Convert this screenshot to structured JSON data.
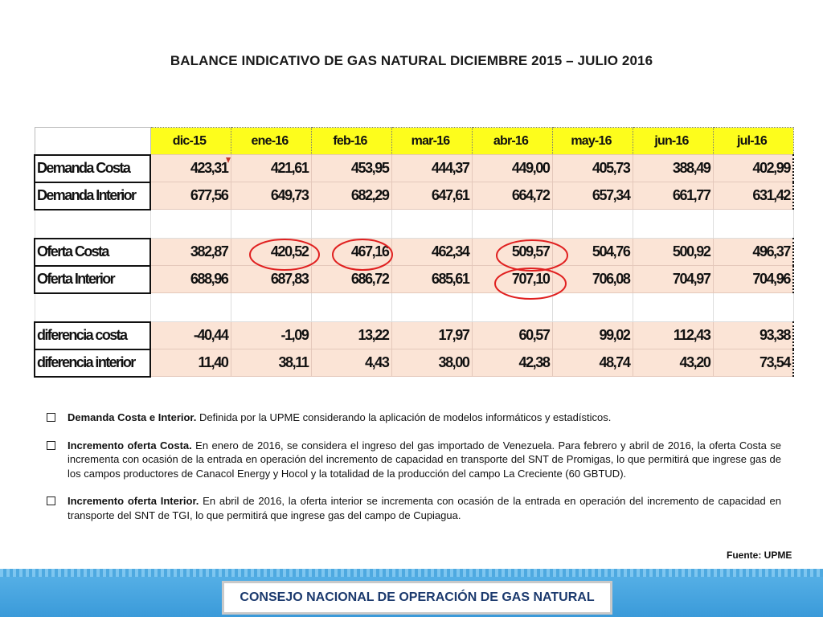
{
  "title": "BALANCE INDICATIVO DE GAS NATURAL DICIEMBRE 2015 – JULIO 2016",
  "table": {
    "columns": [
      "dic-15",
      "ene-16",
      "feb-16",
      "mar-16",
      "abr-16",
      "may-16",
      "jun-16",
      "jul-16"
    ],
    "rows": [
      {
        "label": "Demanda Costa",
        "values": [
          "423,31",
          "421,61",
          "453,95",
          "444,37",
          "449,00",
          "405,73",
          "388,49",
          "402,99"
        ]
      },
      {
        "label": "Demanda Interior",
        "values": [
          "677,56",
          "649,73",
          "682,29",
          "647,61",
          "664,72",
          "657,34",
          "661,77",
          "631,42"
        ]
      },
      {
        "label": "Oferta Costa",
        "values": [
          "382,87",
          "420,52",
          "467,16",
          "462,34",
          "509,57",
          "504,76",
          "500,92",
          "496,37"
        ]
      },
      {
        "label": "Oferta Interior",
        "values": [
          "688,96",
          "687,83",
          "686,72",
          "685,61",
          "707,10",
          "706,08",
          "704,97",
          "704,96"
        ]
      },
      {
        "label": "diferencia costa",
        "values": [
          "-40,44",
          "-1,09",
          "13,22",
          "17,97",
          "60,57",
          "99,02",
          "112,43",
          "93,38"
        ]
      },
      {
        "label": "diferencia interior",
        "values": [
          "11,40",
          "38,11",
          "4,43",
          "38,00",
          "42,38",
          "48,74",
          "43,20",
          "73,54"
        ]
      }
    ]
  },
  "notes": [
    {
      "bold": "Demanda Costa e Interior.",
      "text": " Definida por la UPME considerando la aplicación de modelos informáticos y estadísticos."
    },
    {
      "bold": "Incremento oferta Costa.",
      "text": " En enero de 2016, se considera el ingreso del gas importado de Venezuela. Para febrero y abril de 2016, la oferta Costa se incrementa con ocasión de la entrada en operación del incremento de capacidad en transporte del SNT de Promigas, lo que permitirá que ingrese gas de los campos productores de Canacol Energy y Hocol y la totalidad de la producción del campo La Creciente (60 GBTUD)."
    },
    {
      "bold": "Incremento oferta Interior.",
      "text": " En abril de 2016, la oferta interior se incrementa con ocasión de la entrada en operación del incremento de capacidad en transporte del SNT de TGI, lo que permitirá que ingrese gas del campo de Cupiagua."
    }
  ],
  "source": "Fuente: UPME",
  "footer": "CONSEJO NACIONAL DE OPERACIÓN DE GAS NATURAL",
  "colors": {
    "header_fill": "#fdfd1c",
    "cell_fill": "#fbe4d6",
    "circle": "#e02020",
    "footer_bar": "#3a9ad9",
    "footer_text": "#1c3a6e"
  }
}
